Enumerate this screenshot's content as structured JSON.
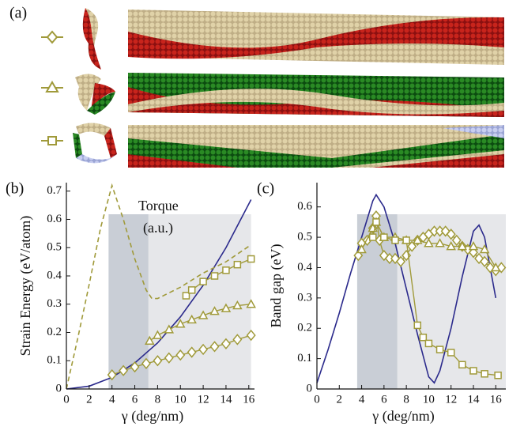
{
  "panel_a": {
    "label": "(a)"
  },
  "chart_data": [
    {
      "type": "line",
      "panel_label": "(b)",
      "ylabel": "Strain Energy (eV/atom)",
      "xlabel": "γ (deg/nm)",
      "annotation": [
        "Torque",
        "(a.u.)"
      ],
      "xlim": [
        0,
        16.5
      ],
      "ylim": [
        0,
        0.73
      ],
      "xticks": [
        0,
        2,
        4,
        6,
        8,
        10,
        12,
        14,
        16
      ],
      "yticks": [
        0,
        0.1,
        0.2,
        0.3,
        0.4,
        0.5,
        0.6,
        0.7
      ],
      "shaded_ranges": [
        [
          3.7,
          7.2
        ],
        [
          7.2,
          16.2
        ]
      ],
      "shade_colors": [
        "#c9ced6",
        "#e6e7ea"
      ],
      "series": [
        {
          "color": "#2b2a8c",
          "marker": "none",
          "dash": false,
          "x": [
            0,
            2,
            4,
            6,
            8,
            10,
            12,
            14,
            16.2
          ],
          "values": [
            0,
            0.01,
            0.041,
            0.092,
            0.163,
            0.255,
            0.367,
            0.5,
            0.67
          ]
        },
        {
          "color": "#a09a3a",
          "marker": "none",
          "dash": true,
          "x": [
            0,
            1,
            2,
            3,
            4,
            5,
            6,
            7,
            7.5,
            8,
            10,
            12,
            14,
            16.2
          ],
          "values": [
            0,
            0.18,
            0.37,
            0.57,
            0.72,
            0.6,
            0.46,
            0.35,
            0.32,
            0.32,
            0.36,
            0.41,
            0.45,
            0.51
          ]
        },
        {
          "color": "#a09a3a",
          "marker": "diamond",
          "dash": false,
          "x": [
            4,
            5,
            6,
            7,
            8,
            9,
            10,
            11,
            12,
            13,
            14,
            15,
            16.2
          ],
          "values": [
            0.05,
            0.065,
            0.078,
            0.09,
            0.1,
            0.11,
            0.12,
            0.13,
            0.14,
            0.15,
            0.16,
            0.175,
            0.19
          ]
        },
        {
          "color": "#a09a3a",
          "marker": "triangle",
          "dash": false,
          "x": [
            7.3,
            8,
            9,
            10,
            11,
            12,
            13,
            14,
            15,
            16.2
          ],
          "values": [
            0.17,
            0.19,
            0.21,
            0.23,
            0.245,
            0.26,
            0.275,
            0.285,
            0.295,
            0.3
          ]
        },
        {
          "color": "#a09a3a",
          "marker": "square",
          "dash": false,
          "x": [
            10.5,
            11,
            12,
            13,
            14,
            15,
            16.2
          ],
          "values": [
            0.33,
            0.35,
            0.38,
            0.4,
            0.42,
            0.44,
            0.46
          ]
        }
      ]
    },
    {
      "type": "line",
      "panel_label": "(c)",
      "ylabel": "Band gap  (eV)",
      "xlabel": "γ (deg/nm)",
      "xlim": [
        0,
        16.9
      ],
      "ylim": [
        0,
        0.68
      ],
      "xticks": [
        0,
        2,
        4,
        6,
        8,
        10,
        12,
        14,
        16
      ],
      "yticks": [
        0,
        0.1,
        0.2,
        0.3,
        0.4,
        0.5,
        0.6
      ],
      "shaded_ranges": [
        [
          3.6,
          7.2
        ],
        [
          7.2,
          16.9
        ]
      ],
      "shade_colors": [
        "#c9ced6",
        "#e6e7ea"
      ],
      "series": [
        {
          "color": "#2b2a8c",
          "marker": "none",
          "dash": false,
          "x": [
            0,
            1,
            2,
            3,
            4,
            5,
            5.3,
            6,
            7,
            8,
            9,
            10,
            10.5,
            11,
            12,
            13,
            14,
            14.5,
            15,
            16
          ],
          "values": [
            0.02,
            0.13,
            0.25,
            0.38,
            0.5,
            0.62,
            0.64,
            0.6,
            0.48,
            0.33,
            0.18,
            0.04,
            0.02,
            0.06,
            0.2,
            0.37,
            0.52,
            0.54,
            0.5,
            0.3
          ]
        },
        {
          "color": "#a09a3a",
          "marker": "diamond",
          "dash": false,
          "x": [
            3.7,
            4,
            4.5,
            5,
            5.3,
            5.6,
            6,
            6.5,
            7,
            7.5,
            8,
            8.5,
            9,
            9.5,
            10,
            10.5,
            11,
            11.5,
            12,
            12.5,
            13,
            13.5,
            14,
            14.5,
            15,
            15.5,
            16,
            16.5
          ],
          "values": [
            0.44,
            0.48,
            0.49,
            0.53,
            0.57,
            0.49,
            0.44,
            0.43,
            0.43,
            0.42,
            0.44,
            0.47,
            0.49,
            0.5,
            0.51,
            0.52,
            0.52,
            0.52,
            0.51,
            0.49,
            0.47,
            0.46,
            0.45,
            0.43,
            0.42,
            0.4,
            0.39,
            0.4
          ]
        },
        {
          "color": "#a09a3a",
          "marker": "triangle",
          "dash": false,
          "x": [
            4,
            5,
            5.3,
            6,
            7,
            8,
            9,
            10,
            11,
            12,
            13,
            14,
            15,
            16
          ],
          "values": [
            0.46,
            0.53,
            0.55,
            0.5,
            0.5,
            0.49,
            0.49,
            0.48,
            0.48,
            0.47,
            0.47,
            0.47,
            0.46,
            0.4
          ]
        },
        {
          "color": "#a09a3a",
          "marker": "square",
          "dash": false,
          "x": [
            5,
            5.3,
            6,
            7,
            8,
            9,
            9.5,
            10,
            11,
            12,
            13,
            14,
            15,
            16.2
          ],
          "values": [
            0.5,
            0.55,
            0.5,
            0.49,
            0.49,
            0.21,
            0.17,
            0.15,
            0.13,
            0.12,
            0.08,
            0.06,
            0.05,
            0.045
          ]
        }
      ]
    }
  ]
}
